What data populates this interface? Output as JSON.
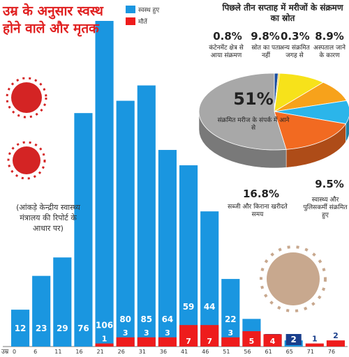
{
  "chart_data": [
    {
      "type": "bar",
      "title": "उम्र के अनुसार स्वस्थ होने वाले और मृतक",
      "note": "(आंकड़े केन्द्रीय स्वास्थ्य मंत्रालय की रिपोर्ट के आधार पर)",
      "x_label": "उम्र",
      "categories": [
        "0",
        "6",
        "11",
        "16",
        "21",
        "26",
        "31",
        "36",
        "41",
        "46",
        "51",
        "56",
        "61",
        "65",
        "71",
        "76"
      ],
      "series": [
        {
          "name": "स्वस्थ हुए",
          "color": "#1a96e0",
          "values": [
            12,
            23,
            29,
            76,
            106,
            80,
            85,
            64,
            59,
            44,
            22,
            9,
            4,
            2,
            null,
            null
          ]
        },
        {
          "name": "मौतें",
          "color": "#ee1c1c",
          "values": [
            null,
            null,
            null,
            null,
            1,
            3,
            3,
            3,
            7,
            7,
            3,
            5,
            4,
            null,
            1,
            2
          ]
        }
      ]
    },
    {
      "type": "pie",
      "title": "पिछले तीन सप्ताह में मरीजों के संक्रमण का स्रोत",
      "labels": [
        "कंटेनमेंट क्षेत्र से आया संक्रमण",
        "अन्य संक्रमित जगह से",
        "स्रोत का पता नहीं",
        "अस्पताल जाने के कारण",
        "स्वास्थ्य और पुलिसकर्मी संक्रमित हुए",
        "सब्जी और किराना खरीदते समय",
        "संक्रमित मरीज के संपर्क में आने से"
      ],
      "values": [
        0.8,
        0.3,
        9.8,
        8.9,
        9.5,
        16.8,
        51
      ],
      "value_labels": [
        "0.8%",
        "0.3%",
        "9.8%",
        "8.9%",
        "9.5%",
        "16.8%",
        "51%"
      ],
      "colors": [
        "#1c4fa0",
        "#f5c518",
        "#f7e21a",
        "#f7a21b",
        "#2bb5ea",
        "#f26a21",
        "#a8a8a8"
      ]
    }
  ]
}
